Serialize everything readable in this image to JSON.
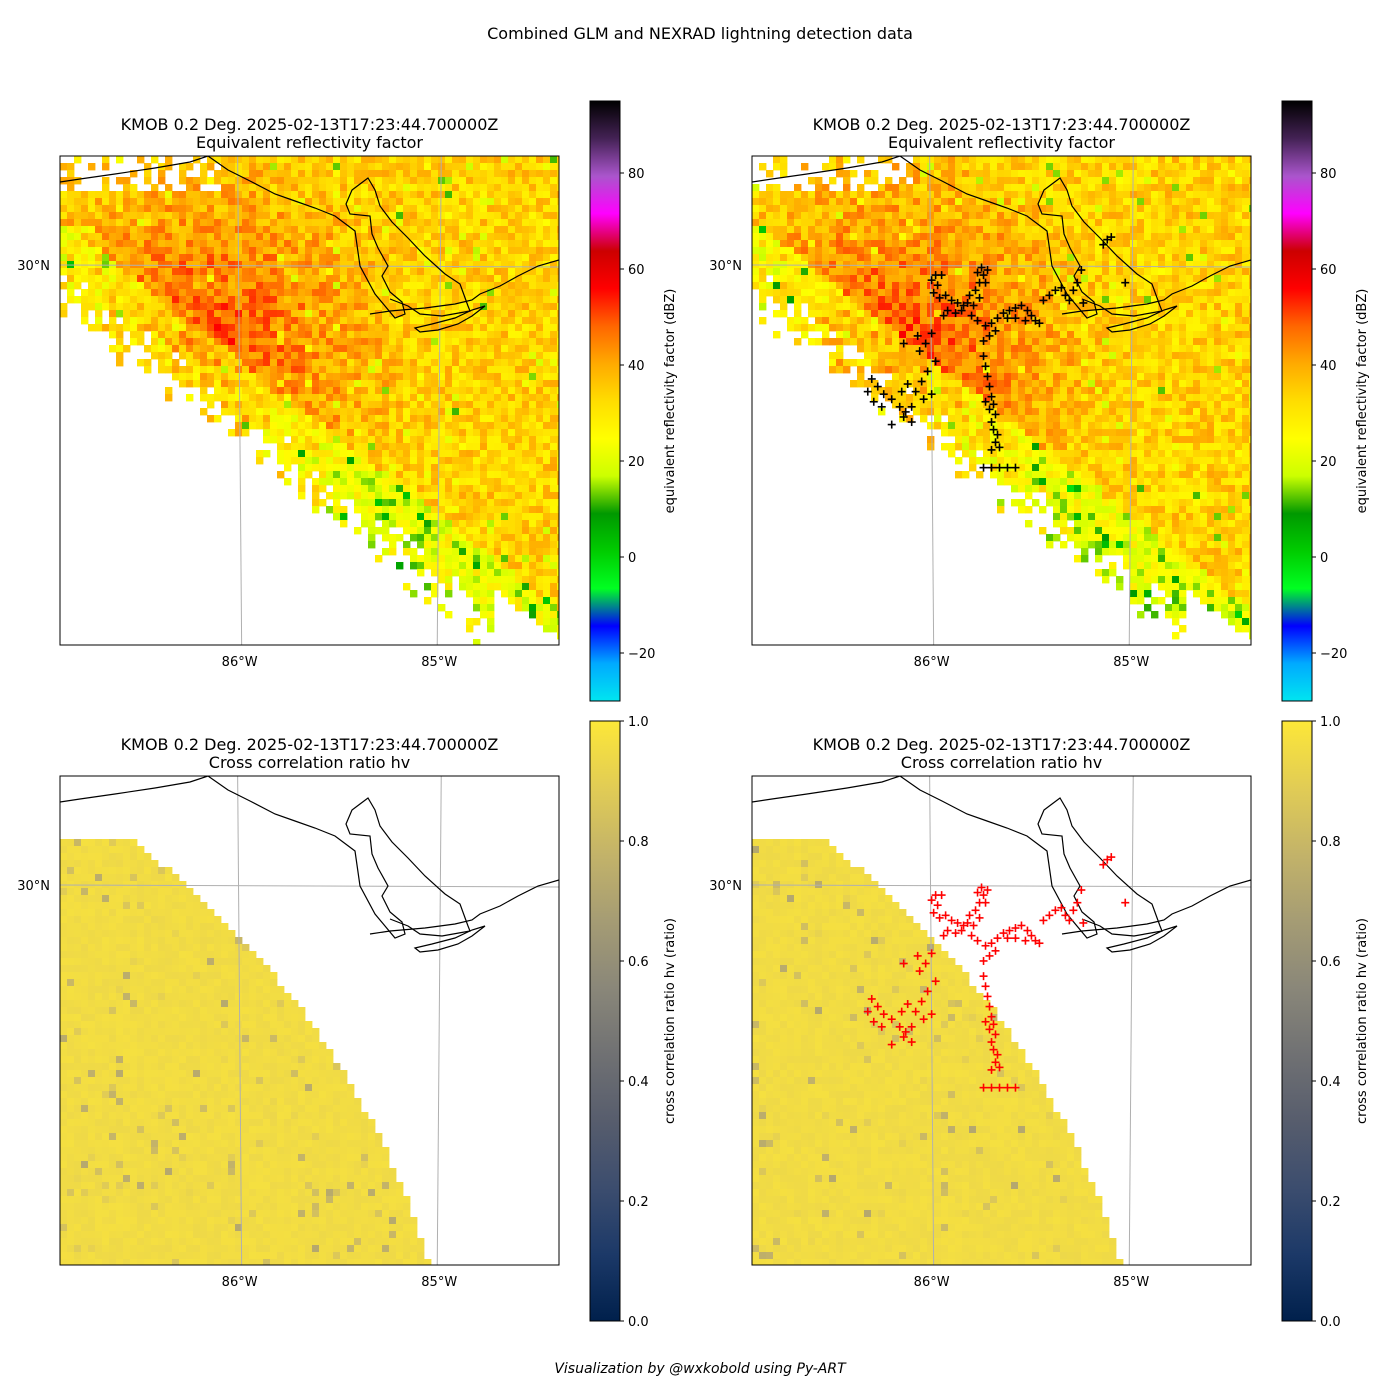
{
  "figure": {
    "title": "Combined GLM and NEXRAD lightning detection data",
    "footer": "Visualization by @wxkobold using Py-ART"
  },
  "colors": {
    "reflectivity_cmap": [
      "#00e5f0",
      "#00aaff",
      "#0000ff",
      "#00ff22",
      "#00cc00",
      "#009900",
      "#ccff00",
      "#ffff00",
      "#ffdd00",
      "#ffaa00",
      "#ff6600",
      "#ff0000",
      "#cc0000",
      "#ff00ff",
      "#aa55cc",
      "#442255",
      "#000000"
    ],
    "correlation_cmap": [
      "#00204c",
      "#1c3968",
      "#3c4d6e",
      "#575d6d",
      "#707173",
      "#8a8779",
      "#a59c74",
      "#c3b369",
      "#e1cc55",
      "#fde738"
    ],
    "coastline": "#000000",
    "grid": "#b0b0b0",
    "glm_black": "#000000",
    "glm_red": "#ff0000"
  },
  "chart_data": [
    {
      "type": "heatmap",
      "title": "KMOB 0.2 Deg. 2025-02-13T17:23:44.700000Z",
      "subtitle": "Equivalent reflectivity factor",
      "field": "reflectivity",
      "x_ticks": [
        "86°W",
        "85°W"
      ],
      "y_ticks": [
        "30°N"
      ],
      "colorbar": {
        "label": "equivalent reflectivity factor (dBZ)",
        "ticks": [
          "-20",
          "0",
          "20",
          "40",
          "60",
          "80"
        ],
        "range": [
          -30,
          95
        ]
      },
      "lightning_markers": null
    },
    {
      "type": "heatmap",
      "title": "KMOB 0.2 Deg. 2025-02-13T17:23:44.700000Z",
      "subtitle": "Equivalent reflectivity factor",
      "field": "reflectivity",
      "x_ticks": [
        "86°W",
        "85°W"
      ],
      "y_ticks": [
        "30°N"
      ],
      "colorbar": {
        "label": "equivalent reflectivity factor (dBZ)",
        "ticks": [
          "-20",
          "0",
          "20",
          "40",
          "60",
          "80"
        ],
        "range": [
          -30,
          95
        ]
      },
      "lightning_markers": "black"
    },
    {
      "type": "heatmap",
      "title": "KMOB 0.2 Deg. 2025-02-13T17:23:44.700000Z",
      "subtitle": "Cross correlation ratio hv",
      "field": "correlation",
      "x_ticks": [
        "86°W",
        "85°W"
      ],
      "y_ticks": [
        "30°N"
      ],
      "colorbar": {
        "label": "cross correlation ratio hv (ratio)",
        "ticks": [
          "0.0",
          "0.2",
          "0.4",
          "0.6",
          "0.8",
          "1.0"
        ],
        "range": [
          0,
          1
        ]
      },
      "lightning_markers": null
    },
    {
      "type": "heatmap",
      "title": "KMOB 0.2 Deg. 2025-02-13T17:23:44.700000Z",
      "subtitle": "Cross correlation ratio hv",
      "field": "correlation",
      "x_ticks": [
        "86°W",
        "85°W"
      ],
      "y_ticks": [
        "30°N"
      ],
      "colorbar": {
        "label": "cross correlation ratio hv (ratio)",
        "ticks": [
          "0.0",
          "0.2",
          "0.4",
          "0.6",
          "0.8",
          "1.0"
        ],
        "range": [
          0,
          1
        ]
      },
      "lightning_markers": "red"
    }
  ],
  "glm_flashes": {
    "units": "degrees longitude / latitude",
    "points": [
      [
        -85.98,
        29.96
      ],
      [
        -85.95,
        29.96
      ],
      [
        -86.0,
        29.94
      ],
      [
        -85.97,
        29.92
      ],
      [
        -85.99,
        29.89
      ],
      [
        -85.96,
        29.87
      ],
      [
        -85.93,
        29.88
      ],
      [
        -85.9,
        29.86
      ],
      [
        -85.87,
        29.85
      ],
      [
        -85.84,
        29.84
      ],
      [
        -85.82,
        29.85
      ],
      [
        -85.85,
        29.82
      ],
      [
        -85.88,
        29.81
      ],
      [
        -85.92,
        29.82
      ],
      [
        -85.94,
        29.8
      ],
      [
        -85.81,
        29.88
      ],
      [
        -85.78,
        29.9
      ],
      [
        -85.76,
        29.93
      ],
      [
        -85.74,
        29.96
      ],
      [
        -85.72,
        29.98
      ],
      [
        -85.75,
        29.99
      ],
      [
        -85.77,
        29.97
      ],
      [
        -85.73,
        29.93
      ],
      [
        -85.76,
        29.87
      ],
      [
        -85.79,
        29.84
      ],
      [
        -85.8,
        29.8
      ],
      [
        -85.77,
        29.78
      ],
      [
        -85.73,
        29.76
      ],
      [
        -85.7,
        29.77
      ],
      [
        -85.67,
        29.79
      ],
      [
        -85.64,
        29.81
      ],
      [
        -85.61,
        29.82
      ],
      [
        -85.58,
        29.83
      ],
      [
        -85.55,
        29.84
      ],
      [
        -85.52,
        29.82
      ],
      [
        -85.5,
        29.8
      ],
      [
        -85.48,
        29.78
      ],
      [
        -85.46,
        29.77
      ],
      [
        -85.53,
        29.78
      ],
      [
        -85.58,
        29.79
      ],
      [
        -85.62,
        29.79
      ],
      [
        -85.68,
        29.74
      ],
      [
        -85.71,
        29.72
      ],
      [
        -85.74,
        29.7
      ],
      [
        -85.44,
        29.86
      ],
      [
        -85.41,
        29.88
      ],
      [
        -85.38,
        29.9
      ],
      [
        -85.35,
        29.91
      ],
      [
        -85.33,
        29.88
      ],
      [
        -85.31,
        29.86
      ],
      [
        -85.29,
        29.9
      ],
      [
        -85.27,
        29.93
      ],
      [
        -85.24,
        29.85
      ],
      [
        -85.14,
        30.08
      ],
      [
        -85.12,
        30.1
      ],
      [
        -85.1,
        30.11
      ],
      [
        -85.25,
        29.98
      ],
      [
        -85.03,
        29.93
      ],
      [
        -85.74,
        29.64
      ],
      [
        -85.73,
        29.6
      ],
      [
        -85.72,
        29.56
      ],
      [
        -85.71,
        29.52
      ],
      [
        -85.7,
        29.48
      ],
      [
        -85.69,
        29.45
      ],
      [
        -85.71,
        29.43
      ],
      [
        -85.68,
        29.41
      ],
      [
        -85.7,
        29.38
      ],
      [
        -85.69,
        29.35
      ],
      [
        -85.67,
        29.33
      ],
      [
        -85.68,
        29.3
      ],
      [
        -85.66,
        29.28
      ],
      [
        -85.7,
        29.27
      ],
      [
        -85.73,
        29.46
      ],
      [
        -85.74,
        29.2
      ],
      [
        -85.7,
        29.2
      ],
      [
        -85.66,
        29.2
      ],
      [
        -85.62,
        29.2
      ],
      [
        -85.58,
        29.2
      ],
      [
        -86.0,
        29.73
      ],
      [
        -86.03,
        29.69
      ],
      [
        -86.06,
        29.66
      ],
      [
        -85.98,
        29.62
      ],
      [
        -86.02,
        29.58
      ],
      [
        -86.05,
        29.54
      ],
      [
        -86.08,
        29.5
      ],
      [
        -86.04,
        29.47
      ],
      [
        -86.0,
        29.49
      ],
      [
        -86.1,
        29.44
      ],
      [
        -86.13,
        29.42
      ],
      [
        -86.16,
        29.44
      ],
      [
        -86.2,
        29.47
      ],
      [
        -86.24,
        29.49
      ],
      [
        -86.27,
        29.52
      ],
      [
        -86.3,
        29.55
      ],
      [
        -86.32,
        29.5
      ],
      [
        -86.29,
        29.46
      ],
      [
        -86.25,
        29.44
      ],
      [
        -86.15,
        29.5
      ],
      [
        -86.12,
        29.53
      ],
      [
        -86.14,
        29.4
      ],
      [
        -86.2,
        29.37
      ],
      [
        -86.1,
        29.38
      ],
      [
        -86.14,
        29.69
      ],
      [
        -86.07,
        29.72
      ]
    ]
  }
}
